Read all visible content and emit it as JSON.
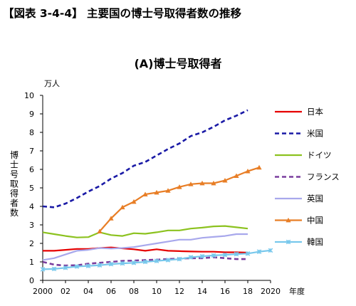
{
  "figure_title": "【図表 3-4-4】 主要国の博士号取得者数の推移",
  "chart_data": {
    "type": "line",
    "title": "(A)博士号取得者",
    "ylabel": "博士号取得者数",
    "yunit": "万人",
    "xunit": "年度",
    "ylim": [
      0,
      10
    ],
    "yticks": [
      0,
      1,
      2,
      3,
      4,
      5,
      6,
      7,
      8,
      9,
      10
    ],
    "xlim": [
      2000,
      2020
    ],
    "xticks": [
      2000,
      2002,
      2004,
      2006,
      2008,
      2010,
      2012,
      2014,
      2016,
      2018,
      2020
    ],
    "xtick_labels": [
      "2000",
      "02",
      "04",
      "06",
      "08",
      "10",
      "12",
      "14",
      "16",
      "18",
      "2020"
    ],
    "grid": false,
    "legend_position": "right",
    "series": [
      {
        "name": "日本",
        "color": "#e60000",
        "dash": "solid",
        "marker": "none",
        "x": [
          2000,
          2001,
          2002,
          2003,
          2004,
          2005,
          2006,
          2007,
          2008,
          2009,
          2010,
          2011,
          2012,
          2013,
          2014,
          2015,
          2016,
          2017,
          2018
        ],
        "y": [
          1.6,
          1.6,
          1.65,
          1.7,
          1.7,
          1.75,
          1.78,
          1.73,
          1.68,
          1.6,
          1.68,
          1.6,
          1.58,
          1.56,
          1.55,
          1.55,
          1.52,
          1.52,
          1.5
        ]
      },
      {
        "name": "米国",
        "color": "#1a1aa6",
        "dash": "dashed",
        "marker": "none",
        "x": [
          2000,
          2001,
          2002,
          2003,
          2004,
          2005,
          2006,
          2007,
          2008,
          2009,
          2010,
          2011,
          2012,
          2013,
          2014,
          2015,
          2016,
          2017,
          2018
        ],
        "y": [
          4.0,
          3.95,
          4.15,
          4.45,
          4.8,
          5.1,
          5.5,
          5.8,
          6.2,
          6.4,
          6.75,
          7.1,
          7.4,
          7.8,
          8.0,
          8.3,
          8.65,
          8.9,
          9.2
        ]
      },
      {
        "name": "ドイツ",
        "color": "#8cc21f",
        "dash": "solid",
        "marker": "none",
        "x": [
          2000,
          2001,
          2002,
          2003,
          2004,
          2005,
          2006,
          2007,
          2008,
          2009,
          2010,
          2011,
          2012,
          2013,
          2014,
          2015,
          2016,
          2017,
          2018
        ],
        "y": [
          2.6,
          2.5,
          2.4,
          2.32,
          2.34,
          2.6,
          2.45,
          2.4,
          2.55,
          2.52,
          2.6,
          2.7,
          2.7,
          2.8,
          2.85,
          2.92,
          2.94,
          2.87,
          2.8
        ]
      },
      {
        "name": "フランス",
        "color": "#7a3e9e",
        "dash": "dashed",
        "marker": "none",
        "x": [
          2000,
          2001,
          2002,
          2003,
          2004,
          2005,
          2006,
          2007,
          2008,
          2009,
          2010,
          2011,
          2012,
          2013,
          2014,
          2015,
          2016,
          2017,
          2018
        ],
        "y": [
          1.0,
          0.85,
          0.8,
          0.82,
          0.9,
          0.95,
          1.0,
          1.05,
          1.07,
          1.1,
          1.12,
          1.15,
          1.18,
          1.2,
          1.2,
          1.25,
          1.2,
          1.15,
          1.15
        ]
      },
      {
        "name": "英国",
        "color": "#a8a8ec",
        "dash": "solid",
        "marker": "none",
        "x": [
          2000,
          2001,
          2002,
          2003,
          2004,
          2005,
          2006,
          2007,
          2008,
          2009,
          2010,
          2011,
          2012,
          2013,
          2014,
          2015,
          2016,
          2017,
          2018
        ],
        "y": [
          1.1,
          1.2,
          1.4,
          1.6,
          1.65,
          1.75,
          1.72,
          1.75,
          1.8,
          1.9,
          2.0,
          2.1,
          2.2,
          2.2,
          2.3,
          2.35,
          2.4,
          2.5,
          2.5
        ]
      },
      {
        "name": "中国",
        "color": "#e87e26",
        "dash": "solid",
        "marker": "triangle",
        "x": [
          2005,
          2006,
          2007,
          2008,
          2009,
          2010,
          2011,
          2012,
          2013,
          2014,
          2015,
          2016,
          2017,
          2018,
          2019
        ],
        "y": [
          2.65,
          3.35,
          3.95,
          4.25,
          4.65,
          4.75,
          4.85,
          5.05,
          5.2,
          5.25,
          5.25,
          5.4,
          5.65,
          5.9,
          6.1
        ]
      },
      {
        "name": "韓国",
        "color": "#78c8ec",
        "dash": "solid",
        "marker": "x",
        "x": [
          2000,
          2001,
          2002,
          2003,
          2004,
          2005,
          2006,
          2007,
          2008,
          2009,
          2010,
          2011,
          2012,
          2013,
          2014,
          2015,
          2016,
          2017,
          2018,
          2019,
          2020
        ],
        "y": [
          0.6,
          0.62,
          0.68,
          0.75,
          0.78,
          0.82,
          0.88,
          0.92,
          0.95,
          1.0,
          1.05,
          1.1,
          1.15,
          1.25,
          1.3,
          1.35,
          1.38,
          1.42,
          1.45,
          1.55,
          1.62
        ]
      }
    ]
  }
}
